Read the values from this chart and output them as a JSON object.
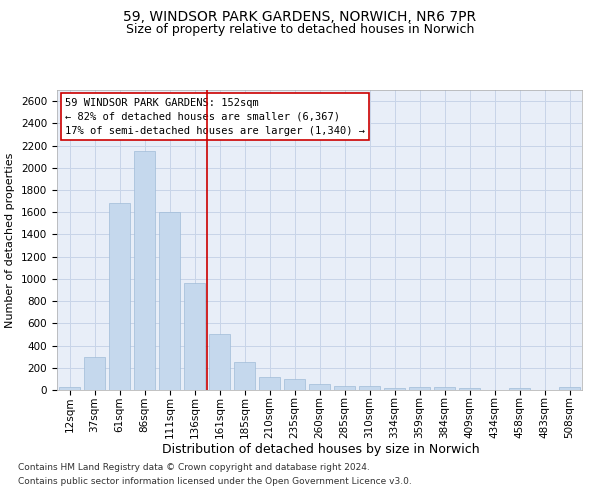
{
  "title1": "59, WINDSOR PARK GARDENS, NORWICH, NR6 7PR",
  "title2": "Size of property relative to detached houses in Norwich",
  "xlabel": "Distribution of detached houses by size in Norwich",
  "ylabel": "Number of detached properties",
  "categories": [
    "12sqm",
    "37sqm",
    "61sqm",
    "86sqm",
    "111sqm",
    "136sqm",
    "161sqm",
    "185sqm",
    "210sqm",
    "235sqm",
    "260sqm",
    "285sqm",
    "310sqm",
    "334sqm",
    "359sqm",
    "384sqm",
    "409sqm",
    "434sqm",
    "458sqm",
    "483sqm",
    "508sqm"
  ],
  "values": [
    25,
    300,
    1680,
    2150,
    1600,
    960,
    500,
    250,
    120,
    100,
    50,
    35,
    40,
    20,
    25,
    25,
    20,
    0,
    20,
    0,
    25
  ],
  "bar_color": "#c5d8ed",
  "bar_edgecolor": "#a0bcd8",
  "vline_x": 5.5,
  "vline_color": "#cc0000",
  "annotation_text": "59 WINDSOR PARK GARDENS: 152sqm\n← 82% of detached houses are smaller (6,367)\n17% of semi-detached houses are larger (1,340) →",
  "annotation_box_color": "#ffffff",
  "annotation_box_edgecolor": "#cc0000",
  "ylim": [
    0,
    2700
  ],
  "yticks": [
    0,
    200,
    400,
    600,
    800,
    1000,
    1200,
    1400,
    1600,
    1800,
    2000,
    2200,
    2400,
    2600
  ],
  "grid_color": "#c8d4e8",
  "bg_color": "#e8eef8",
  "footer1": "Contains HM Land Registry data © Crown copyright and database right 2024.",
  "footer2": "Contains public sector information licensed under the Open Government Licence v3.0.",
  "title1_fontsize": 10,
  "title2_fontsize": 9,
  "xlabel_fontsize": 9,
  "ylabel_fontsize": 8,
  "tick_fontsize": 7.5,
  "annotation_fontsize": 7.5,
  "footer_fontsize": 6.5
}
